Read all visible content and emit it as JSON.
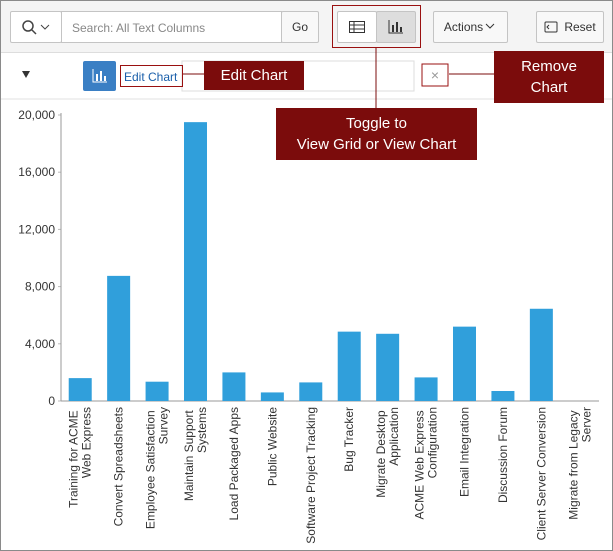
{
  "toolbar": {
    "search_placeholder": "Search: All Text Columns",
    "go": "Go",
    "actions": "Actions",
    "reset": "Reset"
  },
  "chart_controls": {
    "edit_chart": "Edit Chart",
    "remove": "×"
  },
  "callouts": {
    "edit_chart": "Edit Chart",
    "remove_chart": [
      "Remove",
      "Chart"
    ],
    "toggle": [
      "Toggle to",
      "View Grid or View Chart"
    ]
  },
  "chart_data": {
    "type": "bar",
    "categories": [
      "Training for ACME Web Express",
      "Convert Spreadsheets",
      "Employee Satisfaction Survey",
      "Maintain Support Systems",
      "Load Packaged Apps",
      "Public Website",
      "Software Project Tracking",
      "Bug Tracker",
      "Migrate Desktop Application",
      "ACME Web Express Configuration",
      "Email Integration",
      "Discussion Forum",
      "Client Server Conversion",
      "Migrate from Legacy Server"
    ],
    "values": [
      1600,
      8750,
      1350,
      19500,
      2000,
      600,
      1300,
      4850,
      4700,
      1650,
      5200,
      700,
      6450,
      0
    ],
    "color": "#309fdb",
    "ylim": [
      0,
      20000
    ],
    "yticks": [
      0,
      {
        "value": 4000,
        "label": "4,000"
      },
      {
        "value": 8000,
        "label": "8,000"
      },
      {
        "value": 12000,
        "label": "12,000"
      },
      {
        "value": 16000,
        "label": "16,000"
      },
      {
        "value": 20000,
        "label": "20,000"
      }
    ],
    "grid": false
  }
}
